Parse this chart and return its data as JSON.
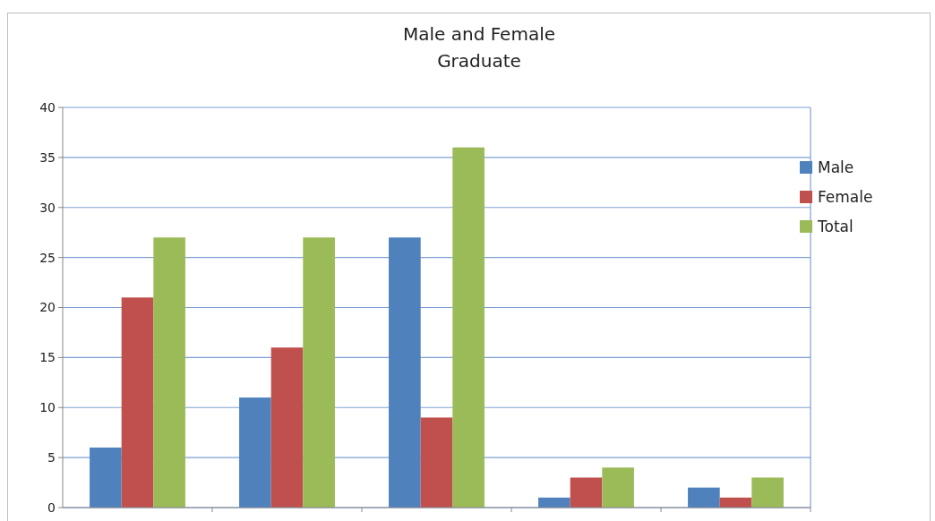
{
  "chart_data": {
    "type": "bar",
    "title": "Male and Female\nGraduate",
    "categories": [
      null,
      null,
      null,
      null,
      null
    ],
    "series": [
      {
        "name": "Male",
        "color": "#4f81bd",
        "values": [
          6,
          11,
          27,
          1,
          2
        ]
      },
      {
        "name": "Female",
        "color": "#c0504d",
        "values": [
          21,
          16,
          9,
          3,
          1
        ]
      },
      {
        "name": "Total",
        "color": "#9bbb59",
        "values": [
          27,
          27,
          36,
          4,
          3
        ]
      }
    ],
    "ylim": [
      0,
      40
    ],
    "yticks": [
      0,
      5,
      10,
      15,
      20,
      25,
      30,
      35,
      40
    ],
    "grid": "y",
    "legend": "right",
    "tick_labels": "y"
  }
}
